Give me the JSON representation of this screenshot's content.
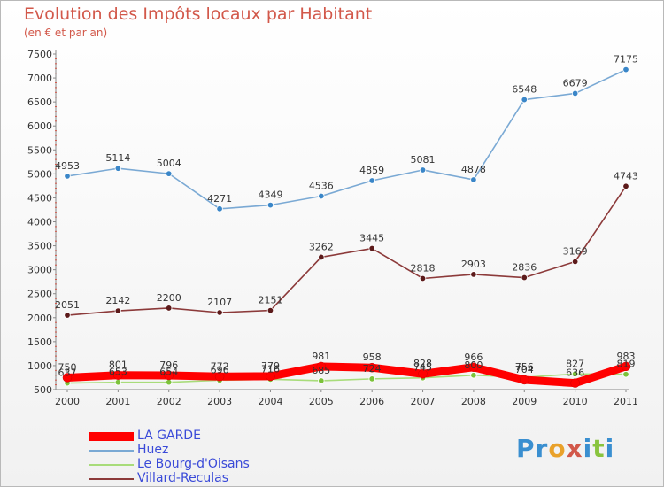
{
  "header": {
    "title": "Evolution des Impôts locaux par Habitant",
    "subtitle": "(en € et par an)"
  },
  "logo": {
    "text": "Proxiti",
    "letter_colors": [
      "#3a8fd0",
      "#3a8fd0",
      "#e9a12a",
      "#d2584a",
      "#3a8fd0",
      "#89c43e",
      "#3a8fd0"
    ]
  },
  "chart_data": {
    "type": "line",
    "title": "Evolution des Impôts locaux par Habitant",
    "subtitle": "(en € et par an)",
    "xlabel": "",
    "ylabel": "",
    "x": [
      "2000",
      "2001",
      "2002",
      "2003",
      "2004",
      "2005",
      "2006",
      "2007",
      "2008",
      "2009",
      "2010",
      "2011"
    ],
    "ylim": [
      500,
      7500
    ],
    "yticks": [
      500,
      1000,
      1500,
      2000,
      2500,
      3000,
      3500,
      4000,
      4500,
      5000,
      5500,
      6000,
      6500,
      7000,
      7500
    ],
    "grid": false,
    "legend_position": "bottom-left",
    "series": [
      {
        "name": "LA GARDE",
        "color": "#ff0000",
        "marker_color": "#ff0000",
        "thick": true,
        "values": [
          750,
          801,
          796,
          772,
          779,
          981,
          958,
          828,
          966,
          704,
          636,
          983
        ],
        "labels": [
          "750",
          "801",
          "796",
          "772",
          "779",
          "981",
          "958",
          "828",
          "966",
          "704",
          "636",
          "983"
        ]
      },
      {
        "name": "Huez",
        "color": "#7aa9d4",
        "marker_color": "#3a86c8",
        "thick": false,
        "values": [
          4953,
          5114,
          5004,
          4271,
          4349,
          4536,
          4859,
          5081,
          4878,
          6548,
          6679,
          7175
        ],
        "labels": [
          "4953",
          "5114",
          "5004",
          "4271",
          "4349",
          "4536",
          "4859",
          "5081",
          "4878",
          "6548",
          "6679",
          "7175"
        ]
      },
      {
        "name": "Le Bourg-d'Oisans",
        "color": "#a8dc7a",
        "marker_color": "#7cc23a",
        "thick": false,
        "values": [
          637,
          653,
          654,
          696,
          716,
          685,
          724,
          745,
          800,
          756,
          827,
          819
        ],
        "labels": [
          "637",
          "653",
          "654",
          "696",
          "716",
          "685",
          "724",
          "745",
          "800",
          "756",
          "827",
          "819"
        ]
      },
      {
        "name": "Villard-Reculas",
        "color": "#8c3a3a",
        "marker_color": "#5c1a1a",
        "thick": false,
        "values": [
          2051,
          2142,
          2200,
          2107,
          2151,
          3262,
          3445,
          2818,
          2903,
          2836,
          3169,
          4743
        ],
        "labels": [
          "2051",
          "2142",
          "2200",
          "2107",
          "2151",
          "3262",
          "3445",
          "2818",
          "2903",
          "2836",
          "3169",
          "4743"
        ]
      }
    ]
  }
}
